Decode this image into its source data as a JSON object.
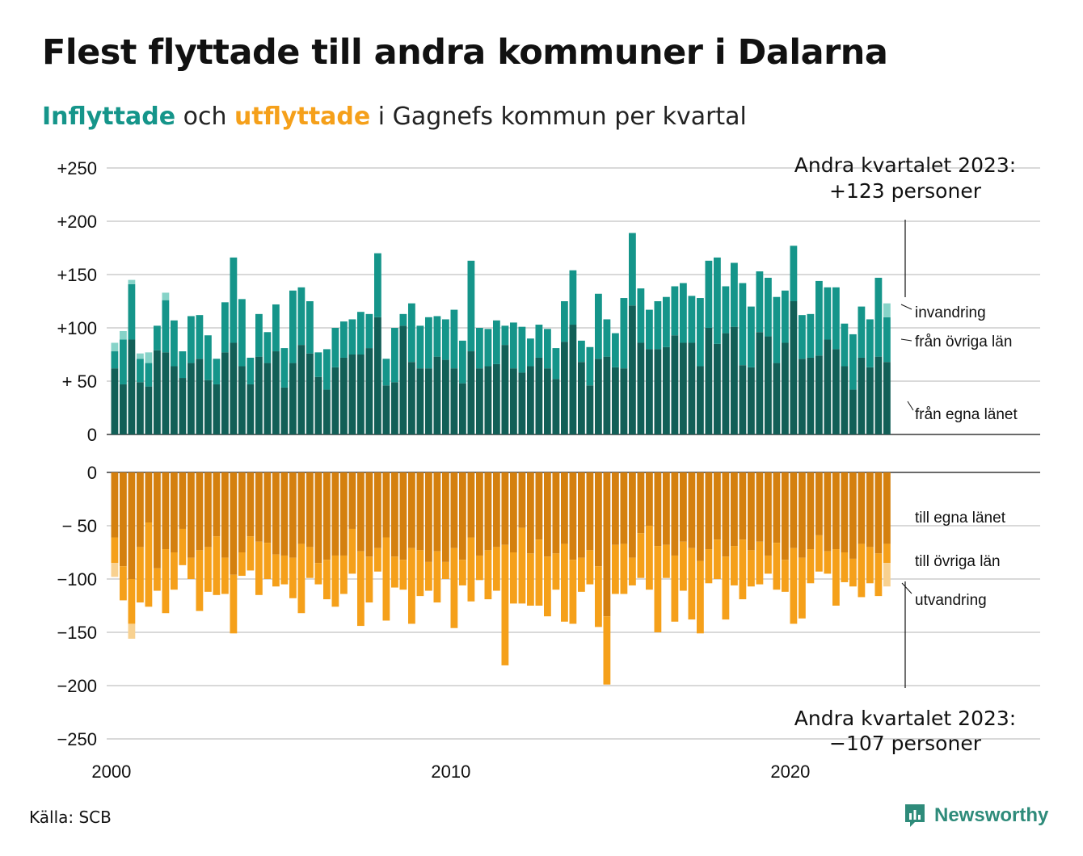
{
  "title": "Flest flyttade till andra kommuner i Dalarna",
  "subtitle": {
    "part1": "Inflyttade",
    "part2": " och ",
    "part3": "utflyttade",
    "part4": " i Gagnefs kommun per kvartal"
  },
  "source": "Källa: SCB",
  "brand": "Newsworthy",
  "colors": {
    "in_own": "#125f57",
    "in_other": "#15958a",
    "in_immig": "#86d3c8",
    "out_own": "#d4800f",
    "out_other": "#f5a01a",
    "out_emig": "#f8d190",
    "grid": "#d9d9d9"
  },
  "chart_data": [
    {
      "type": "bar",
      "stacked": true,
      "subtitle": "Inflyttade",
      "x_start": "2000 Q1",
      "x_end": "2023 Q2",
      "x_ticks": [
        "2000",
        "2010",
        "2020"
      ],
      "y_ticks": [
        "+250",
        "+200",
        "+150",
        "+100",
        "+ 50",
        "0"
      ],
      "ylim": [
        0,
        250
      ],
      "series": [
        {
          "name": "från egna länet",
          "values": [
            62,
            47,
            89,
            49,
            45,
            79,
            77,
            64,
            53,
            67,
            71,
            51,
            47,
            77,
            86,
            64,
            47,
            73,
            67,
            78,
            44,
            67,
            84,
            76,
            54,
            42,
            63,
            72,
            75,
            75,
            81,
            110,
            46,
            49,
            102,
            68,
            62,
            62,
            73,
            70,
            62,
            48,
            78,
            62,
            64,
            66,
            84,
            62,
            58,
            64,
            72,
            62,
            52,
            87,
            103,
            68,
            46,
            71,
            73,
            63,
            62,
            121,
            86,
            80,
            80,
            82,
            93,
            86,
            86,
            64,
            100,
            85,
            95,
            101,
            65,
            63,
            96,
            92,
            67,
            86,
            125,
            71,
            72,
            74,
            89,
            80,
            64,
            42,
            72,
            63,
            73,
            68
          ]
        },
        {
          "name": "från övriga län",
          "values": [
            16,
            42,
            52,
            22,
            22,
            23,
            49,
            43,
            25,
            44,
            41,
            42,
            24,
            47,
            80,
            63,
            25,
            40,
            29,
            44,
            37,
            68,
            54,
            49,
            23,
            38,
            37,
            34,
            33,
            40,
            32,
            60,
            25,
            51,
            11,
            55,
            40,
            48,
            38,
            38,
            55,
            40,
            85,
            38,
            35,
            41,
            18,
            43,
            43,
            26,
            31,
            37,
            29,
            38,
            51,
            20,
            36,
            61,
            35,
            32,
            66,
            68,
            51,
            37,
            45,
            47,
            46,
            56,
            44,
            64,
            63,
            81,
            44,
            60,
            77,
            57,
            57,
            55,
            62,
            49,
            52,
            41,
            41,
            70,
            49,
            58,
            40,
            52,
            48,
            45,
            74,
            42
          ]
        },
        {
          "name": "invandring",
          "values": [
            8,
            8,
            4,
            5,
            10,
            0,
            7,
            0,
            0,
            0,
            0,
            0,
            0,
            0,
            0,
            0,
            0,
            0,
            0,
            0,
            0,
            0,
            0,
            0,
            0,
            0,
            0,
            0,
            0,
            0,
            0,
            0,
            0,
            0,
            0,
            0,
            0,
            0,
            0,
            0,
            0,
            0,
            0,
            0,
            0,
            0,
            0,
            0,
            0,
            0,
            0,
            0,
            0,
            0,
            0,
            0,
            0,
            0,
            0,
            0,
            0,
            0,
            0,
            0,
            0,
            0,
            0,
            0,
            0,
            0,
            0,
            0,
            0,
            0,
            0,
            0,
            0,
            0,
            0,
            0,
            0,
            0,
            0,
            0,
            0,
            0,
            0,
            0,
            0,
            0,
            0,
            13
          ]
        }
      ]
    },
    {
      "type": "bar",
      "stacked": true,
      "subtitle": "utflyttade",
      "x_start": "2000 Q1",
      "x_end": "2023 Q2",
      "x_ticks": [
        "2000",
        "2010",
        "2020"
      ],
      "y_ticks": [
        "0",
        "− 50",
        "−100",
        "−150",
        "−200",
        "−250"
      ],
      "ylim": [
        -250,
        0
      ],
      "series": [
        {
          "name": "till egna länet",
          "values": [
            -61,
            -88,
            -100,
            -70,
            -47,
            -90,
            -72,
            -75,
            -53,
            -80,
            -73,
            -70,
            -60,
            -80,
            -96,
            -75,
            -60,
            -65,
            -66,
            -77,
            -78,
            -80,
            -67,
            -70,
            -85,
            -82,
            -78,
            -78,
            -53,
            -74,
            -79,
            -71,
            -61,
            -79,
            -82,
            -71,
            -73,
            -84,
            -74,
            -84,
            -71,
            -82,
            -61,
            -78,
            -73,
            -70,
            -68,
            -75,
            -52,
            -76,
            -63,
            -79,
            -76,
            -67,
            -82,
            -80,
            -73,
            -88,
            -135,
            -68,
            -67,
            -80,
            -57,
            -50,
            -69,
            -68,
            -78,
            -65,
            -71,
            -83,
            -72,
            -63,
            -79,
            -69,
            -63,
            -73,
            -65,
            -78,
            -66,
            -82,
            -71,
            -80,
            -72,
            -59,
            -74,
            -72,
            -75,
            -81,
            -67,
            -70,
            -76,
            -67
          ]
        },
        {
          "name": "till övriga län",
          "values": [
            -24,
            -32,
            -42,
            -52,
            -79,
            -21,
            -60,
            -35,
            -34,
            -20,
            -57,
            -42,
            -55,
            -34,
            -55,
            -22,
            -32,
            -50,
            -34,
            -30,
            -27,
            -38,
            -65,
            -29,
            -20,
            -37,
            -48,
            -36,
            -42,
            -70,
            -43,
            -22,
            -78,
            -29,
            -28,
            -71,
            -43,
            -27,
            -48,
            -16,
            -75,
            -24,
            -60,
            -23,
            -46,
            -41,
            -113,
            -48,
            -71,
            -49,
            -62,
            -56,
            -34,
            -73,
            -60,
            -32,
            -32,
            -57,
            -64,
            -46,
            -47,
            -26,
            -42,
            -60,
            -81,
            -31,
            -62,
            -46,
            -67,
            -68,
            -32,
            -37,
            -59,
            -37,
            -56,
            -34,
            -40,
            -17,
            -44,
            -30,
            -71,
            -57,
            -32,
            -34,
            -21,
            -53,
            -28,
            -26,
            -50,
            -34,
            -40,
            -18
          ]
        },
        {
          "name": "utvandring",
          "values": [
            -13,
            0,
            -14,
            0,
            0,
            0,
            0,
            0,
            0,
            0,
            0,
            0,
            0,
            0,
            0,
            0,
            0,
            0,
            0,
            0,
            0,
            0,
            0,
            0,
            0,
            0,
            0,
            0,
            0,
            0,
            0,
            0,
            0,
            0,
            0,
            0,
            0,
            0,
            0,
            0,
            0,
            0,
            0,
            0,
            0,
            0,
            0,
            0,
            0,
            0,
            0,
            0,
            0,
            0,
            0,
            0,
            0,
            0,
            0,
            0,
            0,
            0,
            0,
            0,
            0,
            0,
            0,
            0,
            0,
            0,
            0,
            0,
            0,
            0,
            0,
            0,
            0,
            0,
            0,
            0,
            0,
            0,
            0,
            0,
            0,
            0,
            0,
            0,
            0,
            0,
            0,
            -22
          ]
        }
      ]
    }
  ],
  "labels": {
    "in": [
      "invandring",
      "från övriga län",
      "från egna länet"
    ],
    "out": [
      "till egna länet",
      "till övriga län",
      "utvandring"
    ]
  },
  "annotations": {
    "top_line1": "Andra kvartalet 2023:",
    "top_line2": "+123 personer",
    "bottom_line1": "Andra kvartalet 2023:",
    "bottom_line2": "−107 personer"
  }
}
